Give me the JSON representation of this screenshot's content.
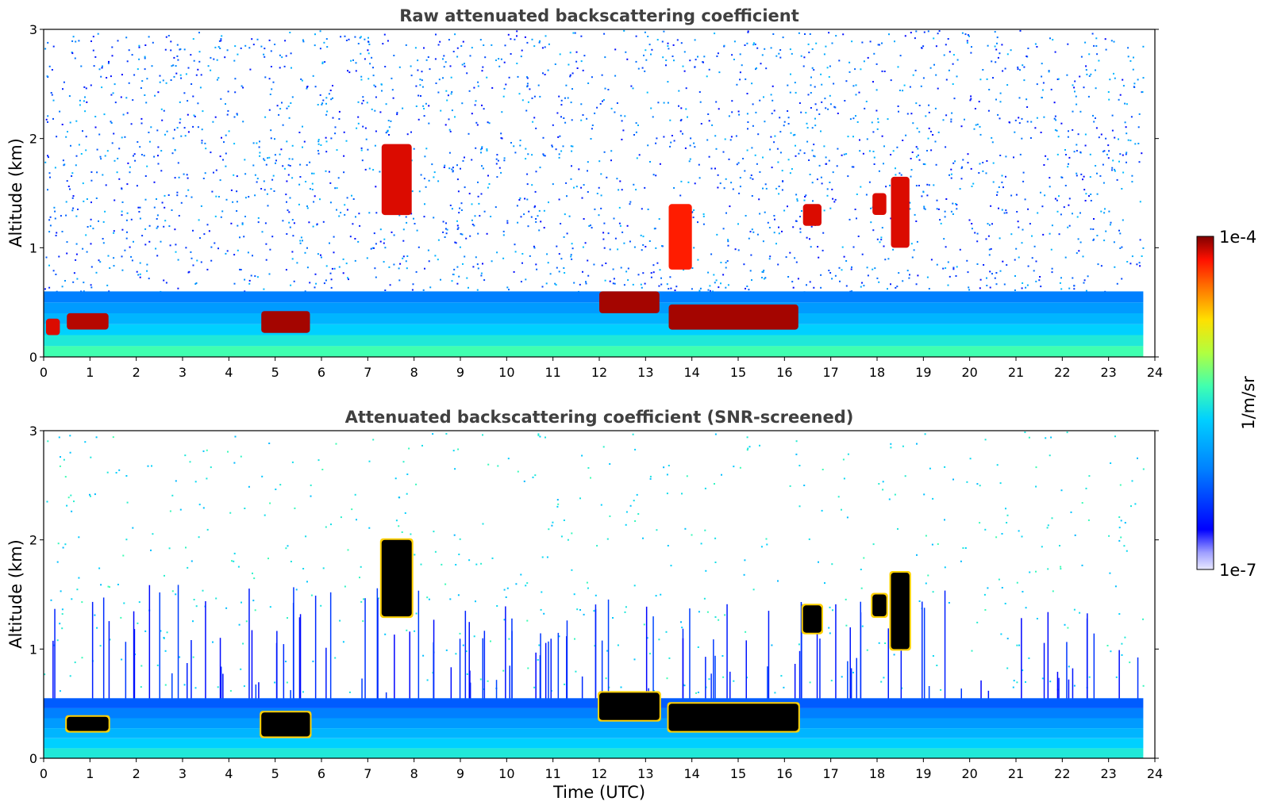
{
  "chart_data": [
    {
      "type": "heatmap",
      "title": "Raw attenuated backscattering coefficient",
      "xlabel": "",
      "ylabel": "Altitude (km)",
      "xlim": [
        0,
        24
      ],
      "ylim": [
        0,
        3
      ],
      "xticks": [
        "0",
        "1",
        "2",
        "3",
        "4",
        "5",
        "6",
        "7",
        "8",
        "9",
        "10",
        "11",
        "12",
        "13",
        "14",
        "15",
        "16",
        "17",
        "18",
        "19",
        "20",
        "21",
        "22",
        "23",
        "24"
      ],
      "yticks": [
        "0",
        "1",
        "2",
        "3"
      ],
      "grid": false,
      "features": [
        {
          "name": "boundary layer",
          "x": [
            0,
            23.75
          ],
          "y": [
            0,
            0.6
          ],
          "level": 0.55
        },
        {
          "name": "cloud",
          "x": [
            0.05,
            0.35
          ],
          "y": [
            0.2,
            0.35
          ],
          "level": 0.95
        },
        {
          "name": "cloud",
          "x": [
            0.5,
            1.4
          ],
          "y": [
            0.25,
            0.4
          ],
          "level": 0.97
        },
        {
          "name": "cloud",
          "x": [
            4.7,
            5.75
          ],
          "y": [
            0.22,
            0.42
          ],
          "level": 0.98
        },
        {
          "name": "cloud",
          "x": [
            7.3,
            7.95
          ],
          "y": [
            1.3,
            1.95
          ],
          "level": 0.95
        },
        {
          "name": "cloud",
          "x": [
            12.0,
            13.3
          ],
          "y": [
            0.4,
            0.6
          ],
          "level": 0.98
        },
        {
          "name": "cloud",
          "x": [
            13.5,
            16.3
          ],
          "y": [
            0.25,
            0.48
          ],
          "level": 0.98
        },
        {
          "name": "cloud",
          "x": [
            13.5,
            14.0
          ],
          "y": [
            0.8,
            1.4
          ],
          "level": 0.92
        },
        {
          "name": "cloud",
          "x": [
            16.4,
            16.8
          ],
          "y": [
            1.2,
            1.4
          ],
          "level": 0.95
        },
        {
          "name": "cloud",
          "x": [
            17.9,
            18.2
          ],
          "y": [
            1.3,
            1.5
          ],
          "level": 0.95
        },
        {
          "name": "cloud",
          "x": [
            18.3,
            18.7
          ],
          "y": [
            1.0,
            1.65
          ],
          "level": 0.95
        }
      ]
    },
    {
      "type": "heatmap",
      "title": "Attenuated backscattering coefficient (SNR-screened)",
      "xlabel": "Time (UTC)",
      "ylabel": "Altitude (km)",
      "xlim": [
        0,
        24
      ],
      "ylim": [
        0,
        3
      ],
      "xticks": [
        "0",
        "1",
        "2",
        "3",
        "4",
        "5",
        "6",
        "7",
        "8",
        "9",
        "10",
        "11",
        "12",
        "13",
        "14",
        "15",
        "16",
        "17",
        "18",
        "19",
        "20",
        "21",
        "22",
        "23",
        "24"
      ],
      "yticks": [
        "0",
        "1",
        "2",
        "3"
      ],
      "grid": false,
      "features": [
        {
          "name": "boundary layer",
          "x": [
            0,
            23.75
          ],
          "y": [
            0,
            0.55
          ],
          "level": 0.5
        },
        {
          "name": "cloud",
          "x": [
            0.5,
            1.4
          ],
          "y": [
            0.25,
            0.38
          ],
          "level": 1.0
        },
        {
          "name": "cloud",
          "x": [
            4.7,
            5.75
          ],
          "y": [
            0.2,
            0.42
          ],
          "level": 1.0
        },
        {
          "name": "cloud",
          "x": [
            7.3,
            7.95
          ],
          "y": [
            1.3,
            2.0
          ],
          "level": 1.0
        },
        {
          "name": "cloud",
          "x": [
            12.0,
            13.3
          ],
          "y": [
            0.35,
            0.6
          ],
          "level": 1.0
        },
        {
          "name": "cloud",
          "x": [
            13.5,
            16.3
          ],
          "y": [
            0.25,
            0.5
          ],
          "level": 1.0
        },
        {
          "name": "cloud",
          "x": [
            16.4,
            16.8
          ],
          "y": [
            1.15,
            1.4
          ],
          "level": 1.0
        },
        {
          "name": "cloud",
          "x": [
            17.9,
            18.2
          ],
          "y": [
            1.3,
            1.5
          ],
          "level": 1.0
        },
        {
          "name": "cloud",
          "x": [
            18.3,
            18.7
          ],
          "y": [
            1.0,
            1.7
          ],
          "level": 1.0
        }
      ]
    }
  ],
  "colorbar": {
    "label": "1/m/sr",
    "max_label": "1e-4",
    "min_label": "1e-7",
    "colormap": "jet",
    "scale": "log",
    "overflow_color": "#000000"
  }
}
